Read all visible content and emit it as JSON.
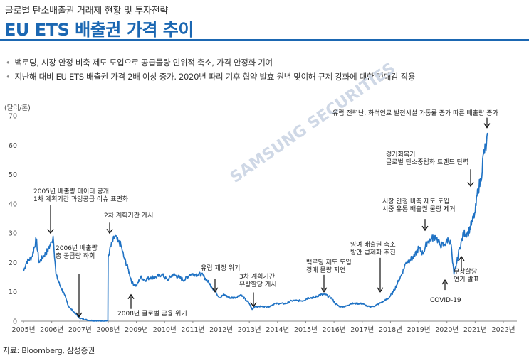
{
  "header": {
    "category": "글로벌 탄소배출권 거래제 현황 및 투자전략",
    "title": "EU ETS 배출권 가격 추이"
  },
  "bullets": [
    "백로딩, 시장 안정 비축 제도 도입으로 공급물량 인위적 축소, 가격 안정화 기여",
    "지난해 대비 EU ETS 배출권 가격 2배 이상 증가. 2020년 파리 기후 협약 발효 원년 맞이해 규제 강화에 대한 기대감 작용"
  ],
  "source": "자료: Bloomberg, 삼성증권",
  "watermark": "SAMSUNG SECURITIES",
  "chart_data": {
    "type": "line",
    "unit_label": "(달러/톤)",
    "ylim": [
      0,
      70
    ],
    "yticks": [
      "0",
      "10",
      "20",
      "30",
      "40",
      "50",
      "60",
      "70"
    ],
    "xticks": [
      "2005년",
      "2006년",
      "2007년",
      "2008년",
      "2009년",
      "2010년",
      "2011년",
      "2012년",
      "2013년",
      "2014년",
      "2015년",
      "2016년",
      "2017년",
      "2018년",
      "2019년",
      "2020년",
      "2021년",
      "2022년"
    ],
    "line_color": "#1f72c4",
    "series": [
      {
        "x": [
          2005.0,
          2005.1,
          2005.2,
          2005.3,
          2005.45,
          2005.55,
          2005.7,
          2005.85,
          2006.0,
          2006.05,
          2006.15,
          2006.3,
          2006.45,
          2006.6,
          2006.8,
          2007.0,
          2007.3,
          2007.6,
          2007.9,
          2007.99,
          2008.0,
          2008.05,
          2008.15,
          2008.25,
          2008.35,
          2008.45,
          2008.55,
          2008.7,
          2008.85,
          2009.0,
          2009.15,
          2009.3,
          2009.5,
          2009.7,
          2009.9,
          2010.1,
          2010.3,
          2010.5,
          2010.7,
          2010.9,
          2011.1,
          2011.3,
          2011.5,
          2011.65,
          2011.8,
          2011.95,
          2012.1,
          2012.3,
          2012.5,
          2012.7,
          2012.9,
          2013.0,
          2013.1,
          2013.2,
          2013.3,
          2013.5,
          2013.7,
          2013.9,
          2014.1,
          2014.3,
          2014.5,
          2014.7,
          2014.9,
          2015.1,
          2015.3,
          2015.5,
          2015.7,
          2015.9,
          2016.05,
          2016.2,
          2016.4,
          2016.6,
          2016.8,
          2017.0,
          2017.2,
          2017.4,
          2017.6,
          2017.8,
          2017.95,
          2018.1,
          2018.25,
          2018.4,
          2018.55,
          2018.7,
          2018.85,
          2019.0,
          2019.15,
          2019.3,
          2019.45,
          2019.6,
          2019.75,
          2019.9,
          2020.05,
          2020.15,
          2020.2,
          2020.25,
          2020.35,
          2020.45,
          2020.6,
          2020.75,
          2020.9,
          2021.0,
          2021.1,
          2021.2,
          2021.3,
          2021.4,
          2021.45
        ],
        "y": [
          17,
          20,
          21,
          22,
          28,
          20,
          22,
          24,
          27,
          29,
          16,
          12,
          9,
          5,
          3,
          1,
          0.3,
          0.1,
          0.1,
          0.1,
          22,
          24,
          27,
          29,
          27,
          26,
          22,
          18,
          13,
          12,
          15,
          14,
          15,
          15,
          16,
          14,
          16,
          15,
          14,
          16,
          16,
          16,
          14,
          12,
          10,
          8,
          9,
          8,
          8,
          9,
          7,
          6,
          4,
          5,
          5,
          5,
          5,
          6,
          6,
          6,
          7,
          7,
          7,
          8,
          8,
          9,
          9,
          8,
          6,
          5,
          5,
          6,
          6,
          6,
          5,
          5,
          6,
          7,
          8,
          10,
          13,
          16,
          20,
          21,
          22,
          25,
          23,
          27,
          28,
          29,
          26,
          26,
          28,
          26,
          20,
          16,
          20,
          25,
          30,
          30,
          34,
          37,
          45,
          48,
          57,
          60,
          64
        ]
      }
    ],
    "annotations": [
      {
        "text": "2005년 배출량 데이터 공개\n1차 계획기간 과잉공급 이슈 표면화",
        "x": 2006.0,
        "y": 29
      },
      {
        "text": "2006년 배출량\n총 공급량 하회",
        "x": 2007.0,
        "y": 0.5
      },
      {
        "text": "2차 계획기간 개시",
        "x": 2008.1,
        "y": 29
      },
      {
        "text": "2008년 글로벌 금융 위기",
        "x": 2008.75,
        "y": 10
      },
      {
        "text": "유럽 재정 위기",
        "x": 2011.75,
        "y": 9
      },
      {
        "text": "3차 계획기간\n유상할당 개시",
        "x": 2013.1,
        "y": 4
      },
      {
        "text": "백로딩 제도 도입\n경매 물량 지연",
        "x": 2015.6,
        "y": 9
      },
      {
        "text": "잉여 배출권 축소\n방안 법제화 추진",
        "x": 2017.55,
        "y": 9
      },
      {
        "text": "시장 안정 비축 제도 도입\n시중 유통 배출권 물량 제거",
        "x": 2019.25,
        "y": 30
      },
      {
        "text": "COVID-19",
        "x": 2019.95,
        "y": 15
      },
      {
        "text": "무상할당\n연기 발표",
        "x": 2020.5,
        "y": 23
      },
      {
        "text": "경기회복기\n글로벌 탄소중립화 트렌드 탄력",
        "x": 2020.85,
        "y": 45
      },
      {
        "text": "유럽 전력난, 화석연료 발전시설 가동률 증가 따른 배출량 증가",
        "x": 2021.45,
        "y": 65
      }
    ]
  }
}
